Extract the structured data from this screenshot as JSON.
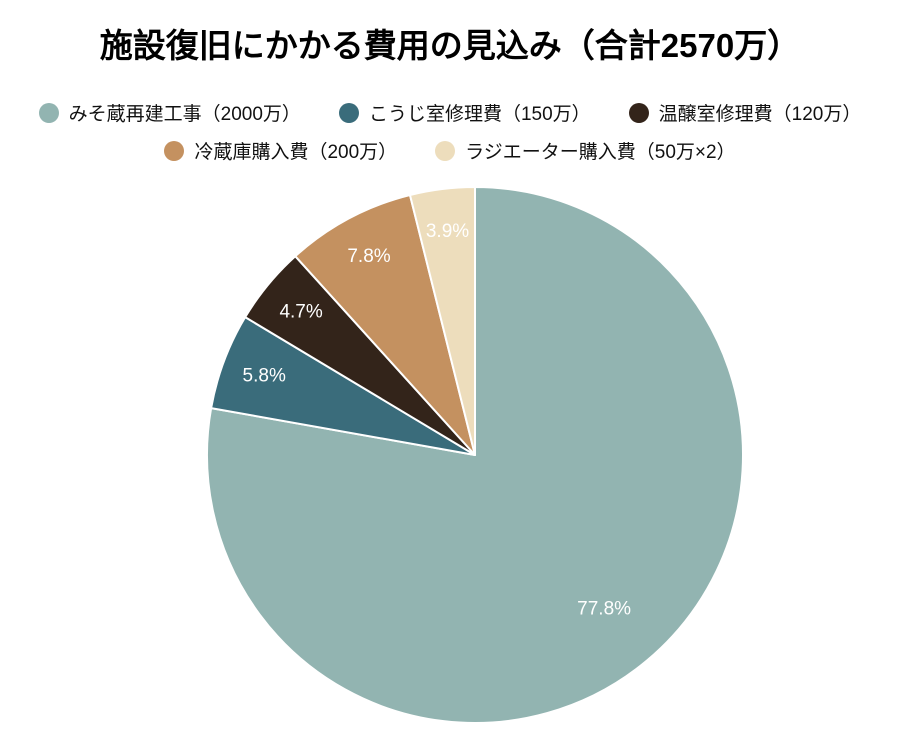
{
  "chart_data": {
    "type": "pie",
    "title": "施設復旧にかかる費用の見込み（合計2570万）",
    "total_label": "合計2570万",
    "unit": "万",
    "direction": "clockwise",
    "start_angle": "top",
    "legend_position": "top",
    "background": "#ffffff",
    "slice_label_color": "#ffffff",
    "slice_border_color": "#ffffff",
    "slices": [
      {
        "label": "みそ蔵再建工事（2000万）",
        "value": 2000,
        "pct": 77.8,
        "pct_label": "77.8%",
        "color": "#92B4B1"
      },
      {
        "label": "こうじ室修理費（150万）",
        "value": 150,
        "pct": 5.8,
        "pct_label": "5.8%",
        "color": "#3A6C7B"
      },
      {
        "label": "温醸室修理費（120万）",
        "value": 120,
        "pct": 4.7,
        "pct_label": "4.7%",
        "color": "#33241A"
      },
      {
        "label": "冷蔵庫購入費（200万）",
        "value": 200,
        "pct": 7.8,
        "pct_label": "7.8%",
        "color": "#C49160"
      },
      {
        "label": "ラジエーター購入費（50万×2）",
        "value": 100,
        "pct": 3.9,
        "pct_label": "3.9%",
        "color": "#EDDDBC"
      }
    ]
  }
}
